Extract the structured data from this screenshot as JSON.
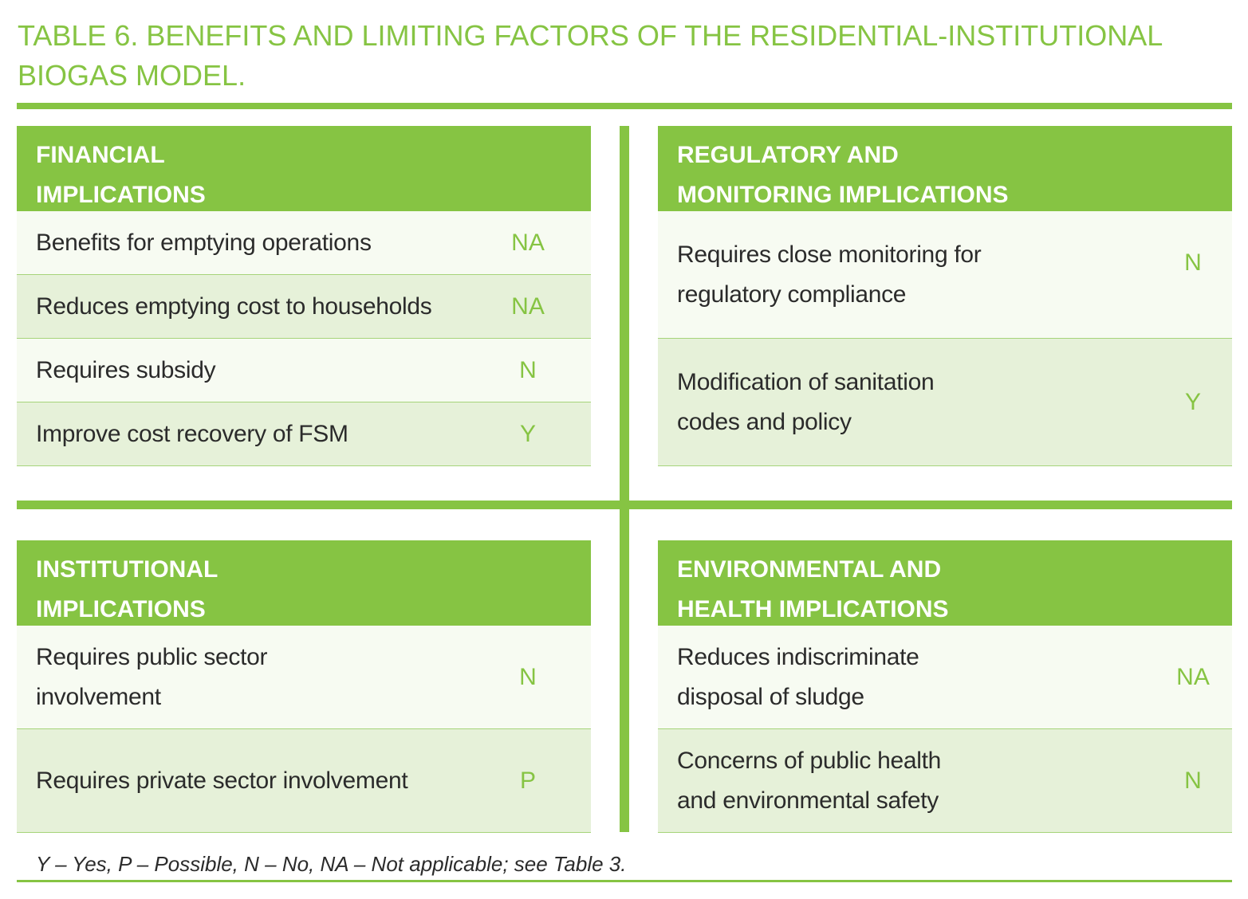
{
  "title": {
    "line1": "TABLE 6. BENEFITS AND LIMITING FACTORS OF THE RESIDENTIAL-INSTITUTIONAL",
    "line2": "BIOGAS MODEL."
  },
  "panels": {
    "financial": {
      "header_line1": "FINANCIAL",
      "header_line2": "IMPLICATIONS",
      "rows": [
        {
          "label": "Benefits for emptying operations",
          "value": "NA"
        },
        {
          "label": "Reduces emptying cost to households",
          "value": "NA"
        },
        {
          "label": "Requires subsidy",
          "value": "N"
        },
        {
          "label": "Improve cost recovery of FSM",
          "value": "Y"
        }
      ]
    },
    "regulatory": {
      "header_line1": "REGULATORY AND",
      "header_line2": "MONITORING IMPLICATIONS",
      "rows": [
        {
          "label_line1": "Requires close monitoring for",
          "label_line2": "regulatory compliance",
          "value": "N"
        },
        {
          "label_line1": "Modification of sanitation",
          "label_line2": "codes and policy",
          "value": "Y"
        }
      ]
    },
    "institutional": {
      "header_line1": "INSTITUTIONAL",
      "header_line2": "IMPLICATIONS",
      "rows": [
        {
          "label_line1": "Requires public sector",
          "label_line2": "involvement",
          "value": "N"
        },
        {
          "label_line1": "Requires private sector involvement",
          "label_line2": "",
          "value": "P"
        }
      ]
    },
    "environmental": {
      "header_line1": "ENVIRONMENTAL AND",
      "header_line2": "HEALTH IMPLICATIONS",
      "rows": [
        {
          "label_line1": "Reduces indiscriminate",
          "label_line2": "disposal of sludge",
          "value": "NA"
        },
        {
          "label_line1": "Concerns of public health",
          "label_line2": "and environmental safety",
          "value": "N"
        }
      ]
    }
  },
  "footnote": "Y – Yes, P – Possible, N – No, NA – Not applicable; see Table 3.",
  "colors": {
    "accent": "#86c443",
    "row_light": "#f7fbf2",
    "row_dark": "#e6f1d9",
    "text": "#2b2b2b"
  }
}
